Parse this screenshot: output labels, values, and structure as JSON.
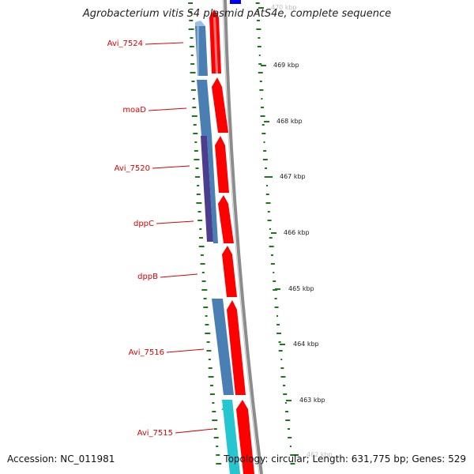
{
  "title": "Agrobacterium vitis S4 plasmid pAtS4e, complete sequence",
  "accession_label": "Accession: NC_011981",
  "topology_label": "Topology: circular; Length: 631,775 bp; Genes: 529",
  "colors": {
    "gene_label": "#dd0000",
    "forward_cds": "#ff0000",
    "reverse_cds_a": "#4a7fb3",
    "reverse_cds_b": "#4d3d8f",
    "reverse_cds_c": "#25c6cf",
    "backbone": "#8c8c8c",
    "gc_marks": "#1a7a1a",
    "marker_blue": "#0000ee"
  },
  "gene_labels": [
    {
      "name": "Avi_7524"
    },
    {
      "name": "moaD"
    },
    {
      "name": "Avi_7520"
    },
    {
      "name": "dppC"
    },
    {
      "name": "dppB"
    },
    {
      "name": "Avi_7516"
    },
    {
      "name": "Avi_7515"
    }
  ],
  "ticks": [
    {
      "label": "470 kbp"
    },
    {
      "label": "469 kbp"
    },
    {
      "label": "468 kbp"
    },
    {
      "label": "467 kbp"
    },
    {
      "label": "466 kbp"
    },
    {
      "label": "465 kbp"
    },
    {
      "label": "464 kbp"
    },
    {
      "label": "463 kbp"
    },
    {
      "label": "462 kbp"
    }
  ]
}
